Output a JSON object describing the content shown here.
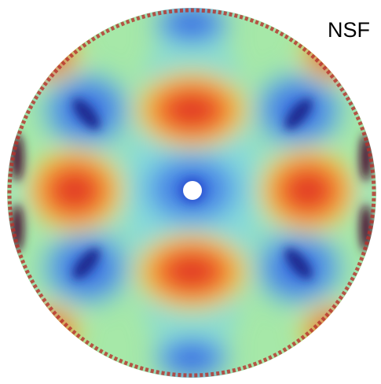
{
  "label": "NSF"
}
